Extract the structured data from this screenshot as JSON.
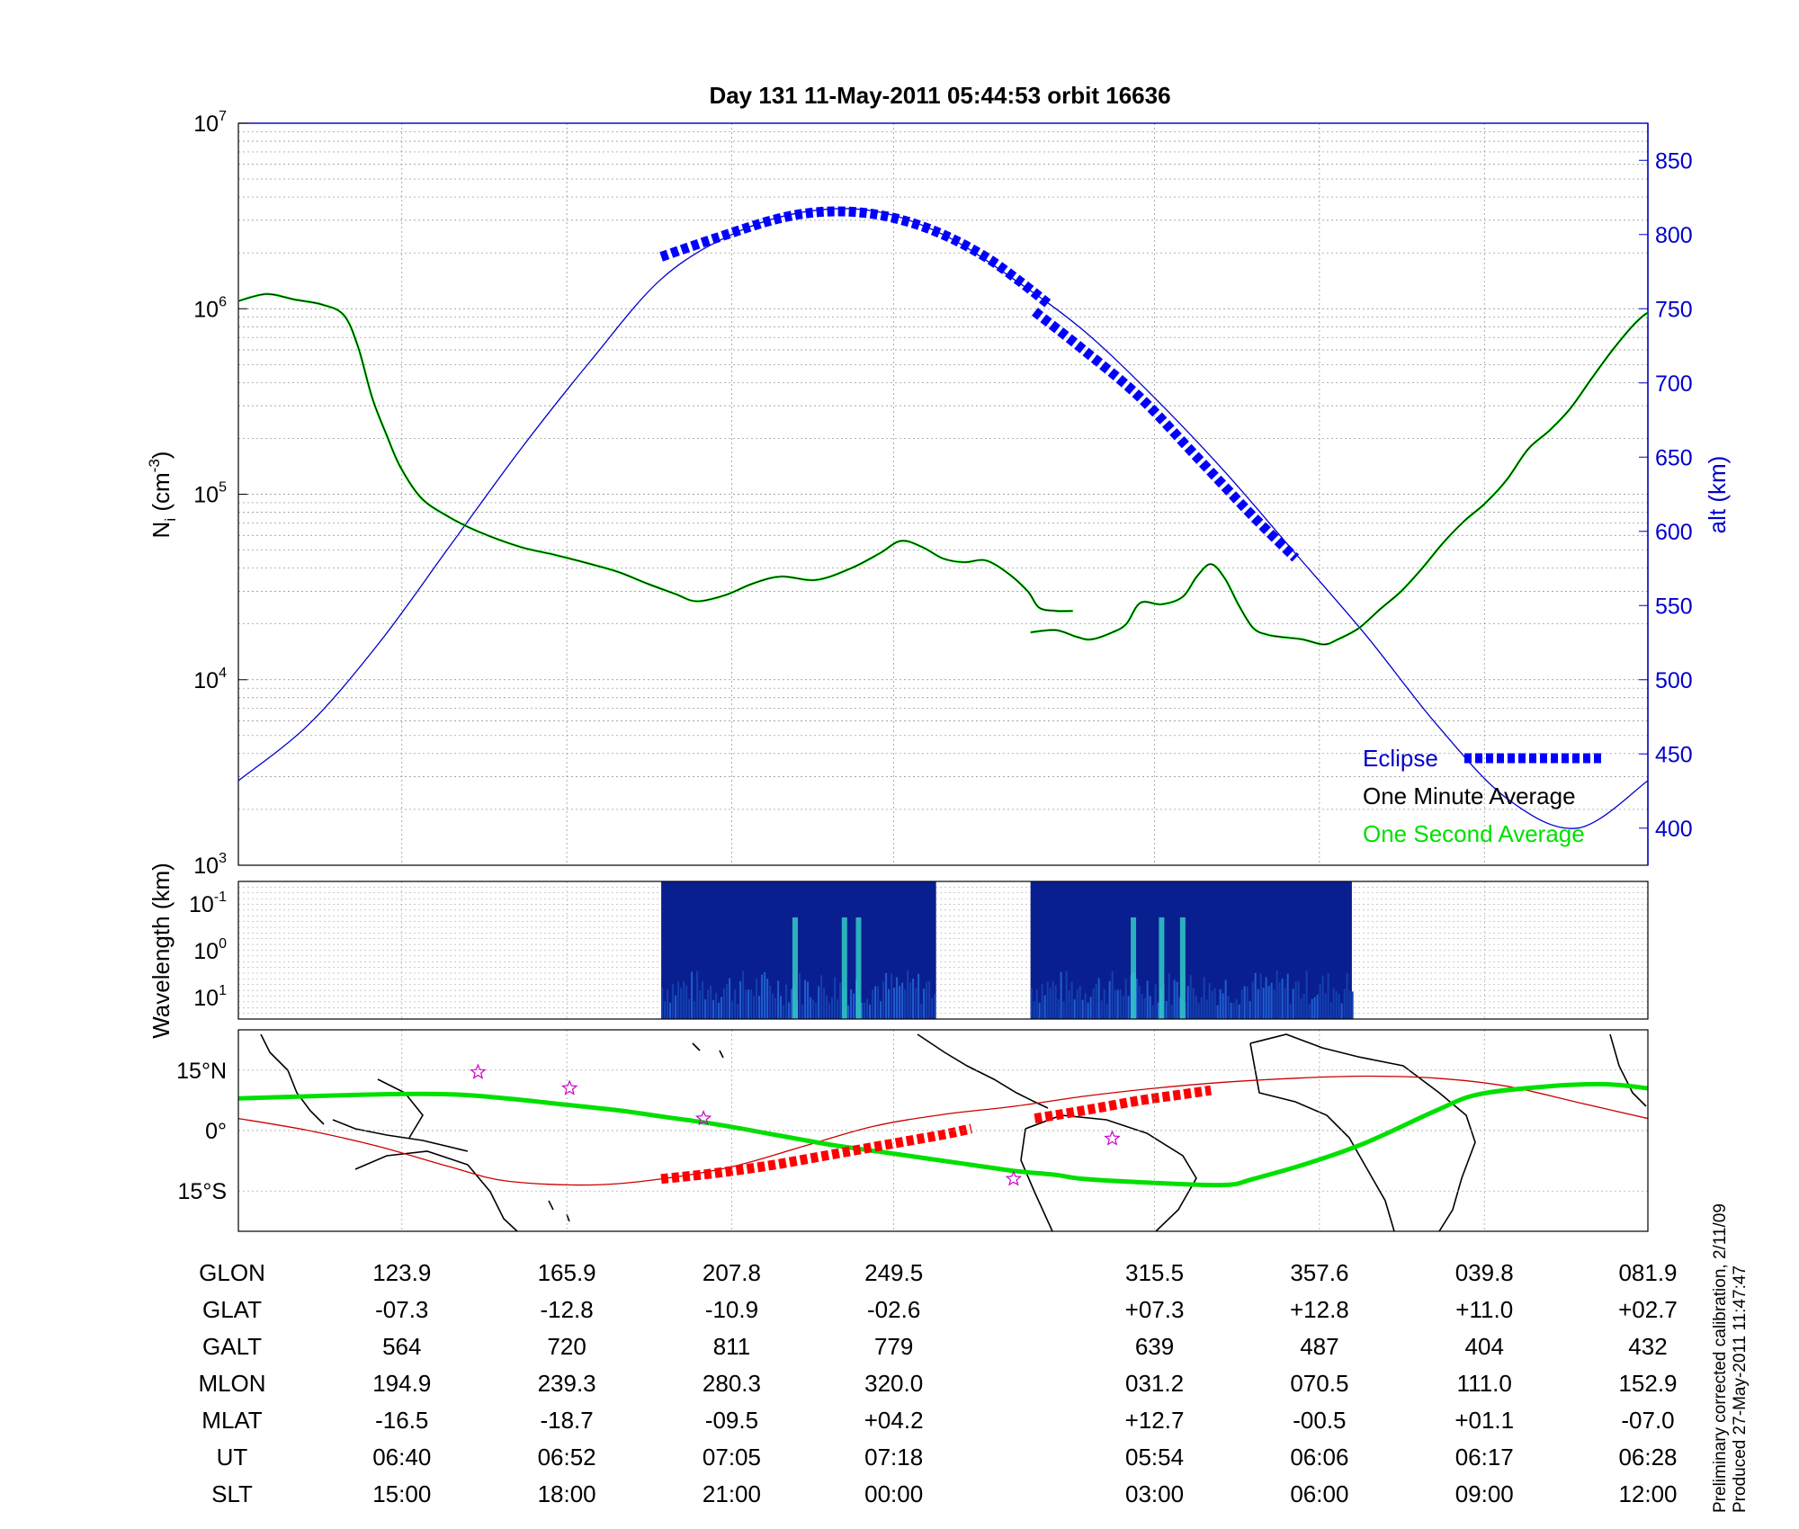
{
  "title": "Day 131  11-May-2011 05:44:53   orbit 16636",
  "calibration_note": "Preliminary corrected calibration, 2/11/09",
  "produced_note": "Produced 27-May-2011 11:47:47",
  "colors": {
    "axis_blue": "#0000cc",
    "eclipse": "#0000ff",
    "minute_avg": "#000000",
    "second_avg": "#00ff00",
    "track": "#00e000",
    "eclipse_track": "#ff0000",
    "model_track": "#cc0000"
  },
  "chart_data": [
    {
      "type": "line",
      "id": "density",
      "ylabel_base": "N",
      "ylabel_sub": "i",
      "ylabel_unit": "(cm",
      "ylabel_unit_sup": "-3",
      "ylabel_close": ")",
      "y_scale": "log",
      "ylim": [
        1000,
        10000000
      ],
      "y_ticks": [
        {
          "base": "10",
          "exp": "3"
        },
        {
          "base": "10",
          "exp": "4"
        },
        {
          "base": "10",
          "exp": "5"
        },
        {
          "base": "10",
          "exp": "6"
        },
        {
          "base": "10",
          "exp": "7"
        }
      ],
      "y2label": "alt (km)",
      "y2lim": [
        375,
        875
      ],
      "y2_ticks": [
        "400",
        "450",
        "500",
        "550",
        "600",
        "650",
        "700",
        "750",
        "800",
        "850"
      ],
      "x_normalized": "fraction of plotted orbit interval",
      "grid": true,
      "legend": {
        "placement": "bottom-right",
        "eclipse": "Eclipse",
        "minute": "One Minute Average",
        "second": "One Second Average"
      },
      "series": [
        {
          "name": "One Minute Average",
          "segments": [
            [
              [
                0.0,
                1100000
              ],
              [
                0.02,
                1200000
              ],
              [
                0.04,
                1120000
              ],
              [
                0.06,
                1050000
              ],
              [
                0.075,
                920000
              ],
              [
                0.085,
                620000
              ],
              [
                0.095,
                330000
              ],
              [
                0.105,
                210000
              ],
              [
                0.115,
                140000
              ],
              [
                0.13,
                95000
              ],
              [
                0.15,
                75000
              ],
              [
                0.17,
                63000
              ],
              [
                0.2,
                52000
              ],
              [
                0.225,
                47000
              ],
              [
                0.25,
                42000
              ],
              [
                0.27,
                38000
              ],
              [
                0.29,
                33000
              ],
              [
                0.31,
                29000
              ],
              [
                0.325,
                26500
              ],
              [
                0.345,
                28500
              ],
              [
                0.365,
                33000
              ],
              [
                0.385,
                36000
              ],
              [
                0.41,
                34500
              ],
              [
                0.435,
                40000
              ],
              [
                0.455,
                48000
              ],
              [
                0.47,
                56000
              ],
              [
                0.485,
                52000
              ],
              [
                0.5,
                45000
              ],
              [
                0.515,
                43000
              ],
              [
                0.53,
                44000
              ],
              [
                0.545,
                38000
              ],
              [
                0.56,
                30000
              ],
              [
                0.568,
                24500
              ],
              [
                0.58,
                23500
              ],
              [
                0.592,
                23500
              ]
            ],
            [
              [
                0.562,
                18000
              ],
              [
                0.58,
                18500
              ],
              [
                0.595,
                17000
              ],
              [
                0.605,
                16500
              ],
              [
                0.62,
                18000
              ],
              [
                0.63,
                20000
              ],
              [
                0.64,
                26000
              ],
              [
                0.655,
                25500
              ],
              [
                0.67,
                28000
              ],
              [
                0.68,
                36000
              ],
              [
                0.69,
                42000
              ],
              [
                0.7,
                35000
              ],
              [
                0.71,
                25000
              ],
              [
                0.72,
                19000
              ],
              [
                0.73,
                17500
              ],
              [
                0.74,
                17000
              ],
              [
                0.755,
                16500
              ],
              [
                0.77,
                15500
              ],
              [
                0.78,
                16500
              ],
              [
                0.795,
                19000
              ],
              [
                0.81,
                24000
              ],
              [
                0.825,
                30000
              ],
              [
                0.84,
                40000
              ],
              [
                0.855,
                55000
              ],
              [
                0.87,
                72000
              ],
              [
                0.885,
                90000
              ],
              [
                0.9,
                120000
              ],
              [
                0.915,
                175000
              ],
              [
                0.93,
                220000
              ],
              [
                0.945,
                290000
              ],
              [
                0.96,
                420000
              ],
              [
                0.975,
                600000
              ],
              [
                0.99,
                820000
              ],
              [
                1.0,
                950000
              ],
              [
                1.0,
                880000
              ],
              [
                1.0,
                900000
              ]
            ]
          ]
        },
        {
          "name": "Altitude",
          "axis": "right",
          "points": [
            [
              0.0,
              432
            ],
            [
              0.05,
              470
            ],
            [
              0.1,
              525
            ],
            [
              0.15,
              590
            ],
            [
              0.2,
              655
            ],
            [
              0.25,
              715
            ],
            [
              0.3,
              770
            ],
            [
              0.35,
              800
            ],
            [
              0.4,
              815
            ],
            [
              0.45,
              816
            ],
            [
              0.5,
              800
            ],
            [
              0.55,
              770
            ],
            [
              0.6,
              735
            ],
            [
              0.65,
              690
            ],
            [
              0.7,
              640
            ],
            [
              0.75,
              585
            ],
            [
              0.8,
              530
            ],
            [
              0.85,
              470
            ],
            [
              0.9,
              420
            ],
            [
              0.95,
              400
            ],
            [
              1.0,
              432
            ]
          ]
        }
      ],
      "eclipse_segments": [
        [
          [
            0.3,
            785
          ],
          [
            0.34,
            798
          ],
          [
            0.38,
            810
          ],
          [
            0.41,
            815
          ],
          [
            0.44,
            815
          ],
          [
            0.47,
            810
          ],
          [
            0.5,
            800
          ],
          [
            0.53,
            785
          ],
          [
            0.555,
            768
          ],
          [
            0.575,
            753
          ]
        ],
        [
          [
            0.565,
            748
          ],
          [
            0.6,
            722
          ],
          [
            0.64,
            690
          ],
          [
            0.68,
            650
          ],
          [
            0.72,
            610
          ],
          [
            0.75,
            582
          ]
        ]
      ]
    },
    {
      "type": "heatmap",
      "id": "spectrogram",
      "ylabel": "Wavelength (km)",
      "y_scale": "log",
      "y_ticks": [
        {
          "base": "10",
          "exp": "-1"
        },
        {
          "base": "10",
          "exp": "0"
        },
        {
          "base": "10",
          "exp": "1"
        }
      ],
      "segments": [
        [
          0.3,
          0.495
        ],
        [
          0.562,
          0.79
        ]
      ],
      "bright_bands": [
        0.395,
        0.43,
        0.44,
        0.635,
        0.655,
        0.67
      ]
    },
    {
      "type": "line",
      "id": "ground_track",
      "y_ticks": [
        "15°N",
        "0°",
        "15°S"
      ],
      "ylim": [
        -25,
        25
      ],
      "series": [
        {
          "name": "Track",
          "points": [
            [
              0.0,
              8
            ],
            [
              0.05,
              8.5
            ],
            [
              0.1,
              9
            ],
            [
              0.15,
              9
            ],
            [
              0.19,
              8
            ],
            [
              0.23,
              6.5
            ],
            [
              0.27,
              5
            ],
            [
              0.3,
              3.5
            ],
            [
              0.34,
              1.5
            ],
            [
              0.38,
              -1
            ],
            [
              0.42,
              -3.5
            ],
            [
              0.46,
              -5.5
            ],
            [
              0.5,
              -7.5
            ],
            [
              0.52,
              -8.5
            ],
            [
              0.55,
              -10
            ],
            [
              0.58,
              -11
            ],
            [
              0.6,
              -12
            ],
            [
              0.65,
              -13
            ],
            [
              0.7,
              -13.5
            ],
            [
              0.72,
              -12
            ],
            [
              0.76,
              -8
            ],
            [
              0.8,
              -3
            ],
            [
              0.85,
              5
            ],
            [
              0.88,
              9
            ],
            [
              0.93,
              11
            ],
            [
              0.97,
              11.5
            ],
            [
              1.0,
              10.5
            ]
          ]
        },
        {
          "name": "Model track",
          "points": [
            [
              0.0,
              3
            ],
            [
              0.05,
              0
            ],
            [
              0.1,
              -4
            ],
            [
              0.15,
              -9
            ],
            [
              0.19,
              -12.5
            ],
            [
              0.25,
              -13.5
            ],
            [
              0.3,
              -12
            ],
            [
              0.35,
              -9
            ],
            [
              0.4,
              -4
            ],
            [
              0.45,
              1
            ],
            [
              0.5,
              4
            ],
            [
              0.55,
              6
            ],
            [
              0.6,
              8.5
            ],
            [
              0.65,
              10.5
            ],
            [
              0.7,
              12
            ],
            [
              0.75,
              13
            ],
            [
              0.8,
              13.5
            ],
            [
              0.85,
              13
            ],
            [
              0.9,
              11
            ],
            [
              0.95,
              7
            ],
            [
              1.0,
              3
            ]
          ]
        }
      ],
      "eclipse_segments": [
        [
          [
            0.3,
            -12
          ],
          [
            0.34,
            -10.5
          ],
          [
            0.38,
            -8.5
          ],
          [
            0.42,
            -6
          ],
          [
            0.46,
            -3.5
          ],
          [
            0.5,
            -1
          ],
          [
            0.52,
            0.5
          ]
        ],
        [
          [
            0.565,
            3
          ],
          [
            0.6,
            5
          ],
          [
            0.64,
            7.5
          ],
          [
            0.67,
            9
          ],
          [
            0.69,
            10
          ]
        ]
      ],
      "stars": [
        [
          0.17,
          14.5
        ],
        [
          0.235,
          10.5
        ],
        [
          0.33,
          3
        ],
        [
          0.55,
          -12
        ],
        [
          0.62,
          -2
        ]
      ]
    },
    {
      "type": "table",
      "id": "ephemeris",
      "rows": [
        {
          "label": "GLON",
          "values": [
            "123.9",
            "165.9",
            "207.8",
            "249.5",
            "315.5",
            "357.6",
            "039.8",
            "081.9"
          ]
        },
        {
          "label": "GLAT",
          "values": [
            "-07.3",
            "-12.8",
            "-10.9",
            "-02.6",
            "+07.3",
            "+12.8",
            "+11.0",
            "+02.7"
          ]
        },
        {
          "label": "GALT",
          "values": [
            "564",
            "720",
            "811",
            "779",
            "639",
            "487",
            "404",
            "432"
          ]
        },
        {
          "label": "MLON",
          "values": [
            "194.9",
            "239.3",
            "280.3",
            "320.0",
            "031.2",
            "070.5",
            "111.0",
            "152.9"
          ]
        },
        {
          "label": "MLAT",
          "values": [
            "-16.5",
            "-18.7",
            "-09.5",
            "+04.2",
            "+12.7",
            "-00.5",
            "+01.1",
            "-07.0"
          ]
        },
        {
          "label": "UT",
          "values": [
            "06:40",
            "06:52",
            "07:05",
            "07:18",
            "05:54",
            "06:06",
            "06:17",
            "06:28"
          ]
        },
        {
          "label": "SLT",
          "values": [
            "15:00",
            "18:00",
            "21:00",
            "00:00",
            "03:00",
            "06:00",
            "09:00",
            "12:00"
          ]
        }
      ],
      "column_positions": [
        0.116,
        0.233,
        0.35,
        0.465,
        0.65,
        0.767,
        0.884,
        1.0
      ]
    }
  ]
}
